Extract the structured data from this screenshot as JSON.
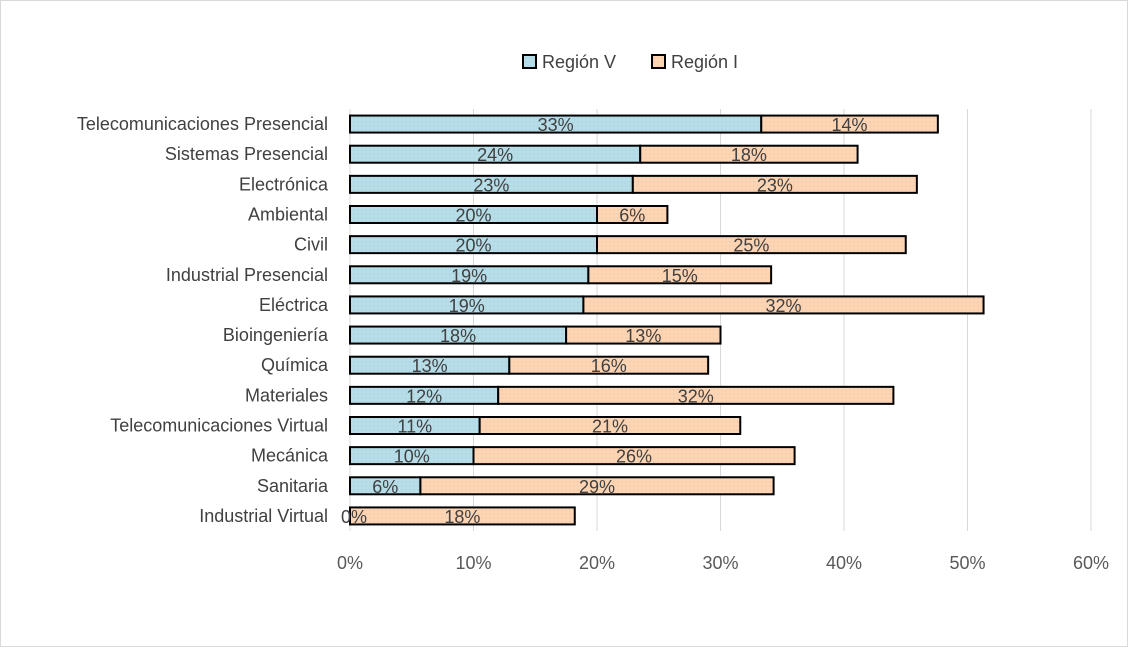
{
  "chart_data": {
    "type": "bar",
    "orientation": "horizontal",
    "stacked": true,
    "title": "",
    "xlabel": "",
    "ylabel": "",
    "xlim": [
      0,
      60
    ],
    "xticks": [
      "0%",
      "10%",
      "20%",
      "30%",
      "40%",
      "50%",
      "60%"
    ],
    "grid": true,
    "legend_position": "top",
    "categories": [
      "Telecomunicaciones Presencial",
      "Sistemas Presencial",
      "Electrónica",
      "Ambiental",
      "Civil",
      "Industrial Presencial",
      "Eléctrica",
      "Bioingeniería",
      "Química",
      "Materiales",
      "Telecomunicaciones Virtual",
      "Mecánica",
      "Sanitaria",
      "Industrial Virtual"
    ],
    "series": [
      {
        "name": "Región V",
        "color": "#b7dde8",
        "values": [
          33.3,
          23.5,
          22.9,
          20.0,
          20.0,
          19.3,
          18.9,
          17.5,
          12.9,
          12.0,
          10.5,
          10.0,
          5.7,
          0.0
        ],
        "labels": [
          "33%",
          "24%",
          "23%",
          "20%",
          "20%",
          "19%",
          "19%",
          "18%",
          "13%",
          "12%",
          "11%",
          "10%",
          "6%",
          "0%"
        ]
      },
      {
        "name": "Región I",
        "color": "#fcd5b5",
        "values": [
          14.3,
          17.6,
          23.0,
          5.7,
          25.0,
          14.8,
          32.4,
          12.5,
          16.1,
          32.0,
          21.1,
          26.0,
          28.6,
          18.2
        ],
        "labels": [
          "14%",
          "18%",
          "23%",
          "6%",
          "25%",
          "15%",
          "32%",
          "13%",
          "16%",
          "32%",
          "21%",
          "26%",
          "29%",
          "18%"
        ]
      }
    ]
  }
}
